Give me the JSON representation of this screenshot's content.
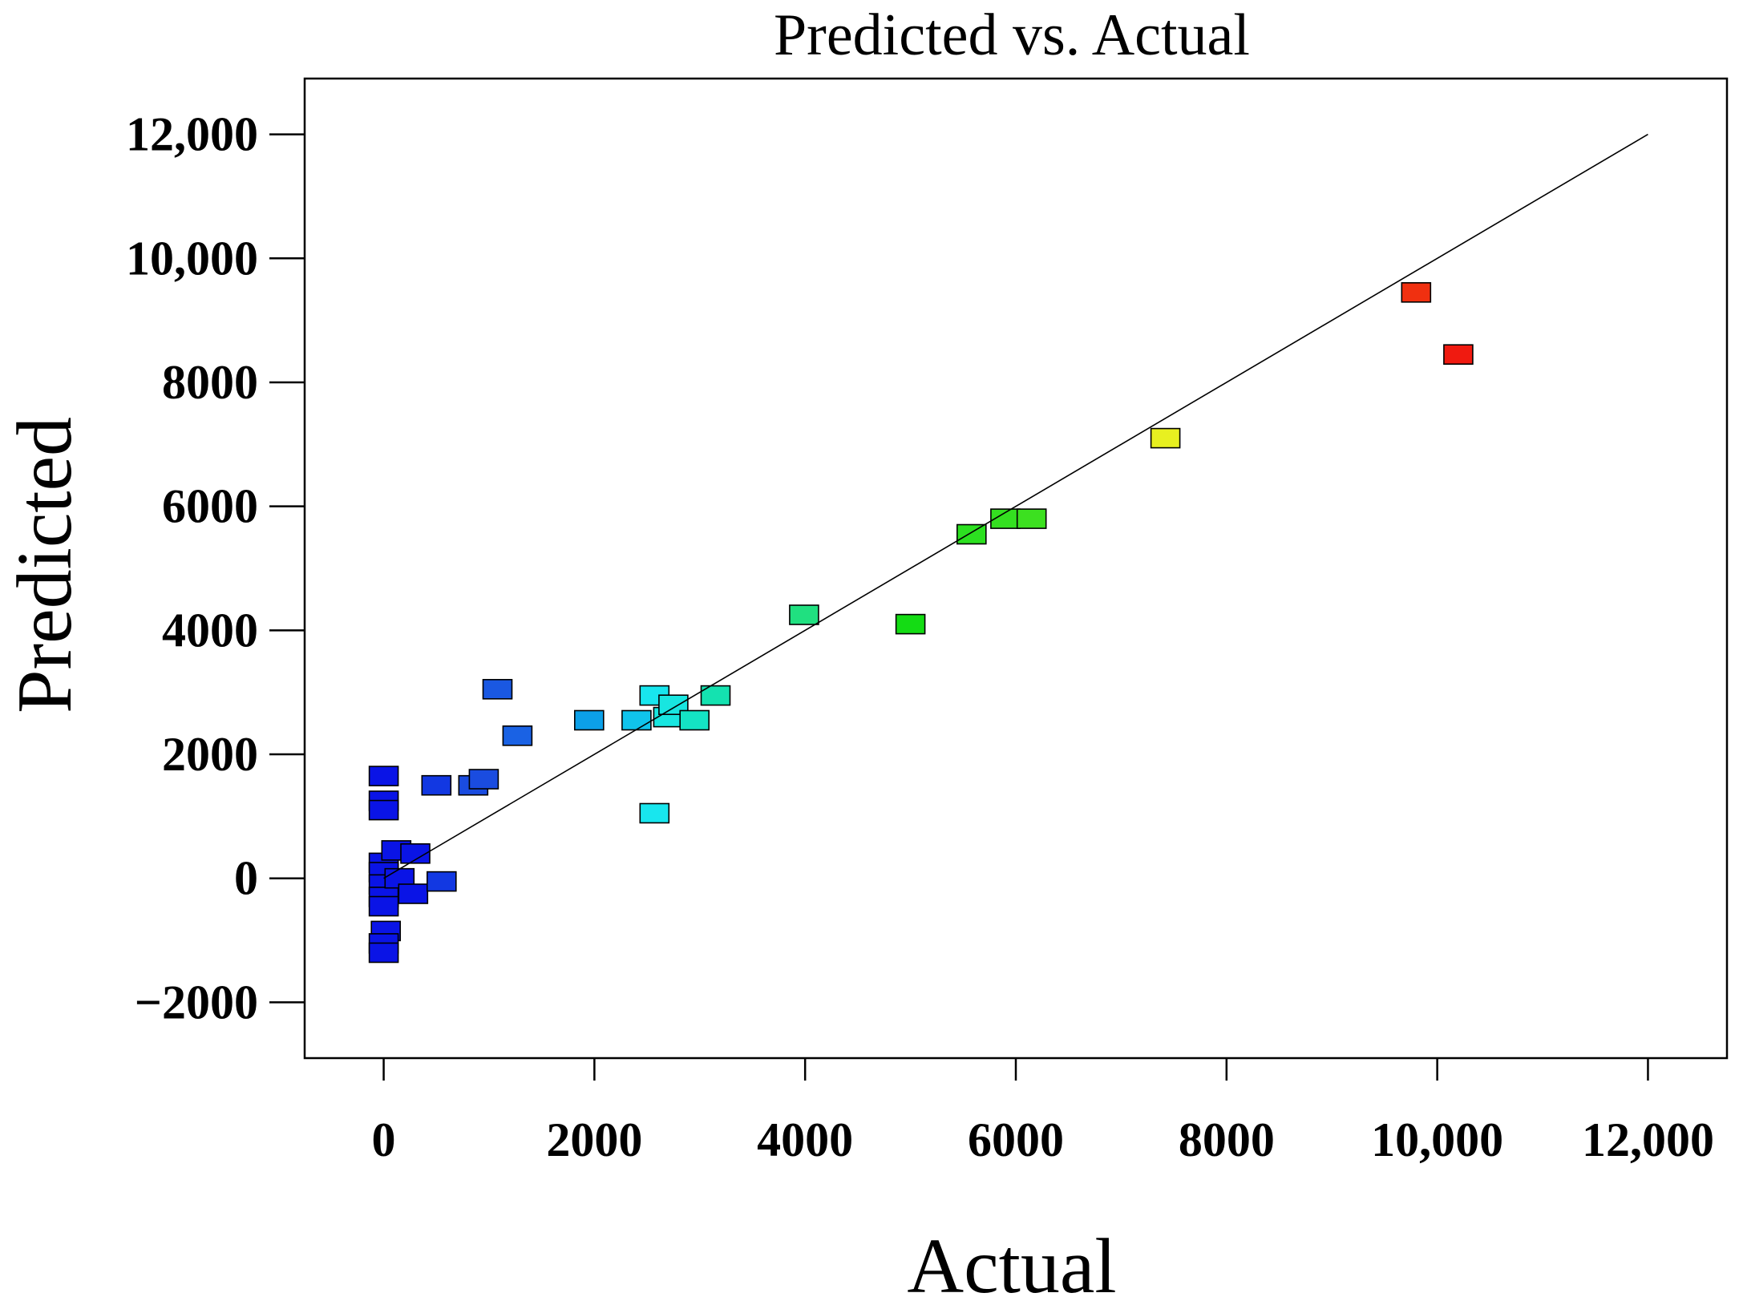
{
  "chart_data": {
    "type": "scatter",
    "title": "Predicted vs. Actual",
    "xlabel": "Actual",
    "ylabel": "Predicted",
    "xlim": [
      -750,
      12750
    ],
    "ylim": [
      -2900,
      12900
    ],
    "x_ticks": [
      0,
      2000,
      4000,
      6000,
      8000,
      10000,
      12000
    ],
    "x_tick_labels": [
      "0",
      "2000",
      "4000",
      "6000",
      "8000",
      "10,000",
      "12,000"
    ],
    "y_ticks": [
      -2000,
      0,
      2000,
      4000,
      6000,
      8000,
      10000,
      12000
    ],
    "y_tick_labels": [
      "−2000",
      "0",
      "2000",
      "4000",
      "6000",
      "8000",
      "10,000",
      "12,000"
    ],
    "reference_line": {
      "from": [
        0,
        0
      ],
      "to": [
        12000,
        12000
      ]
    },
    "grid": false,
    "color_scale": {
      "min": 0,
      "max": 10200,
      "stops": [
        "#0a14e6",
        "#0078e0",
        "#00d8e8",
        "#00e060",
        "#20e010",
        "#e8f020",
        "#f03010"
      ]
    },
    "points": [
      {
        "x": 0,
        "y": 1650,
        "color": "#0a14e6"
      },
      {
        "x": 0,
        "y": 1250,
        "color": "#0a14e6"
      },
      {
        "x": 0,
        "y": 1100,
        "color": "#0a14e6"
      },
      {
        "x": 0,
        "y": 250,
        "color": "#0a14e6"
      },
      {
        "x": 0,
        "y": 100,
        "color": "#0a14e6"
      },
      {
        "x": 0,
        "y": -100,
        "color": "#0a14e6"
      },
      {
        "x": 0,
        "y": -300,
        "color": "#0a14e6"
      },
      {
        "x": 0,
        "y": -450,
        "color": "#0a14e6"
      },
      {
        "x": 20,
        "y": -850,
        "color": "#0a14e6"
      },
      {
        "x": 0,
        "y": -1050,
        "color": "#0a14e6"
      },
      {
        "x": 0,
        "y": -1200,
        "color": "#0a14e6"
      },
      {
        "x": 120,
        "y": 450,
        "color": "#0a14e6"
      },
      {
        "x": 150,
        "y": 0,
        "color": "#0a14e6"
      },
      {
        "x": 300,
        "y": 400,
        "color": "#0a14e6"
      },
      {
        "x": 280,
        "y": -250,
        "color": "#0a14e6"
      },
      {
        "x": 550,
        "y": -50,
        "color": "#1238e2"
      },
      {
        "x": 500,
        "y": 1500,
        "color": "#1238e2"
      },
      {
        "x": 850,
        "y": 1500,
        "color": "#1a4ce0"
      },
      {
        "x": 950,
        "y": 1600,
        "color": "#1a4ce0"
      },
      {
        "x": 1080,
        "y": 3050,
        "color": "#1a58e2"
      },
      {
        "x": 1270,
        "y": 2300,
        "color": "#1a62e4"
      },
      {
        "x": 1950,
        "y": 2550,
        "color": "#0ca0e8"
      },
      {
        "x": 2400,
        "y": 2550,
        "color": "#10c4ec"
      },
      {
        "x": 2570,
        "y": 2950,
        "color": "#18e6ee"
      },
      {
        "x": 2570,
        "y": 1050,
        "color": "#18e6ee"
      },
      {
        "x": 2700,
        "y": 2600,
        "color": "#18e6e0"
      },
      {
        "x": 2750,
        "y": 2800,
        "color": "#18e6e0"
      },
      {
        "x": 2950,
        "y": 2550,
        "color": "#14e4c4"
      },
      {
        "x": 3150,
        "y": 2950,
        "color": "#14e2b0"
      },
      {
        "x": 3990,
        "y": 4250,
        "color": "#20e080"
      },
      {
        "x": 5000,
        "y": 4100,
        "color": "#14dc14"
      },
      {
        "x": 5580,
        "y": 5550,
        "color": "#2ce020"
      },
      {
        "x": 5900,
        "y": 5800,
        "color": "#34e020"
      },
      {
        "x": 6150,
        "y": 5800,
        "color": "#3ce020"
      },
      {
        "x": 7420,
        "y": 7100,
        "color": "#e8f020"
      },
      {
        "x": 9800,
        "y": 9450,
        "color": "#f03010"
      },
      {
        "x": 10200,
        "y": 8450,
        "color": "#f01a10"
      }
    ]
  }
}
